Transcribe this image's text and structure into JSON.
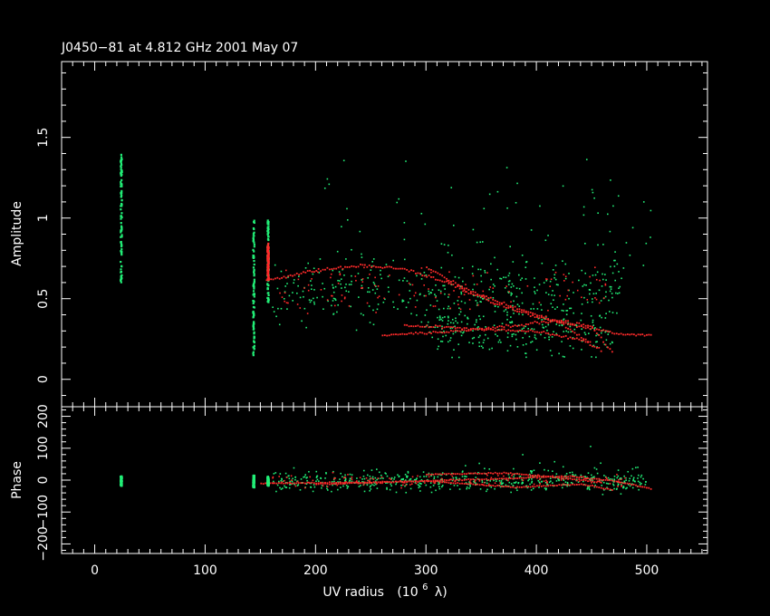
{
  "chart_data": {
    "type": "scatter",
    "title": "J0450−81 at 4.812 GHz 2001 May 07",
    "xlabel": "UV radius",
    "xlabel_unit_prefix": "(10",
    "xlabel_unit_exp": "6",
    "xlabel_unit_suffix": "λ)",
    "xlim": [
      -30,
      555
    ],
    "xticks": [
      "0",
      "100",
      "200",
      "300",
      "400",
      "500"
    ],
    "colors": {
      "background": "#000000",
      "axes": "#ffffff",
      "series_a": "#ff2a2a",
      "series_b": "#22ee77"
    },
    "panels": [
      {
        "ylabel": "Amplitude",
        "ylim": [
          -0.17,
          1.97
        ],
        "yticks": [
          "0",
          "0.5",
          "1",
          "1.5"
        ],
        "ytick_values": [
          0,
          0.5,
          1,
          1.5
        ],
        "stripes": [
          {
            "x": 24,
            "y_min": 0.6,
            "y_max": 1.4,
            "color": "#22ee77"
          },
          {
            "x": 144,
            "y_min": 0.15,
            "y_max": 1.0,
            "color": "#22ee77"
          },
          {
            "x": 157,
            "y_min": 0.48,
            "y_max": 1.0,
            "color": "#22ee77"
          },
          {
            "x": 157,
            "y_min": 0.62,
            "y_max": 0.85,
            "color": "#ff2a2a"
          }
        ],
        "tracks": [
          {
            "color": "#ff2a2a",
            "points": [
              [
                155,
                0.62
              ],
              [
                200,
                0.68
              ],
              [
                240,
                0.71
              ],
              [
                280,
                0.69
              ],
              [
                320,
                0.6
              ],
              [
                360,
                0.48
              ],
              [
                400,
                0.39
              ],
              [
                440,
                0.33
              ],
              [
                480,
                0.28
              ],
              [
                505,
                0.28
              ]
            ]
          },
          {
            "color": "#ff2a2a",
            "points": [
              [
                260,
                0.28
              ],
              [
                320,
                0.3
              ],
              [
                380,
                0.34
              ],
              [
                420,
                0.37
              ],
              [
                450,
                0.33
              ],
              [
                470,
                0.15
              ]
            ]
          },
          {
            "color": "#ff2a2a",
            "points": [
              [
                280,
                0.34
              ],
              [
                340,
                0.32
              ],
              [
                400,
                0.3
              ],
              [
                440,
                0.25
              ],
              [
                460,
                0.18
              ]
            ]
          },
          {
            "color": "#ff2a2a",
            "points": [
              [
                300,
                0.7
              ],
              [
                340,
                0.55
              ],
              [
                380,
                0.45
              ],
              [
                420,
                0.36
              ],
              [
                450,
                0.22
              ]
            ]
          }
        ],
        "scatter": [
          {
            "color": "#22ee77",
            "x_range": [
              160,
              480
            ],
            "y_center": 0.55,
            "y_spread": 0.3,
            "count": 380
          },
          {
            "color": "#22ee77",
            "x_range": [
              300,
              470
            ],
            "y_center": 0.3,
            "y_spread": 0.22,
            "count": 220
          },
          {
            "color": "#22ee77",
            "x_range": [
              200,
              510
            ],
            "y_center": 0.95,
            "y_spread": 0.55,
            "count": 70
          },
          {
            "color": "#ff2a2a",
            "x_range": [
              165,
              470
            ],
            "y_center": 0.55,
            "y_spread": 0.22,
            "count": 120
          }
        ]
      },
      {
        "ylabel": "Phase",
        "ylim": [
          -230,
          230
        ],
        "yticks": [
          "−200",
          "−100",
          "0",
          "100",
          "200"
        ],
        "ytick_values": [
          -200,
          -100,
          0,
          100,
          200
        ],
        "stripes": [
          {
            "x": 24,
            "y_min": -15,
            "y_max": 15,
            "color": "#22ee77"
          },
          {
            "x": 144,
            "y_min": -20,
            "y_max": 20,
            "color": "#22ee77"
          },
          {
            "x": 157,
            "y_min": -15,
            "y_max": 15,
            "color": "#22ee77"
          }
        ],
        "tracks": [
          {
            "color": "#ff2a2a",
            "points": [
              [
                150,
                -8
              ],
              [
                250,
                -5
              ],
              [
                350,
                5
              ],
              [
                430,
                15
              ],
              [
                470,
                0
              ],
              [
                505,
                -25
              ]
            ]
          },
          {
            "color": "#ff2a2a",
            "points": [
              [
                200,
                -10
              ],
              [
                300,
                0
              ],
              [
                380,
                -20
              ],
              [
                440,
                -10
              ],
              [
                470,
                -30
              ]
            ]
          },
          {
            "color": "#ff2a2a",
            "points": [
              [
                300,
                20
              ],
              [
                370,
                25
              ],
              [
                420,
                10
              ],
              [
                460,
                -5
              ]
            ]
          }
        ],
        "scatter": [
          {
            "color": "#22ee77",
            "x_range": [
              160,
              500
            ],
            "y_center": 0,
            "y_spread": 45,
            "count": 520
          },
          {
            "color": "#22ee77",
            "x_range": [
              300,
              500
            ],
            "y_center": 10,
            "y_spread": 110,
            "count": 50
          },
          {
            "color": "#ff2a2a",
            "x_range": [
              160,
              480
            ],
            "y_center": 0,
            "y_spread": 30,
            "count": 120
          }
        ]
      }
    ]
  }
}
